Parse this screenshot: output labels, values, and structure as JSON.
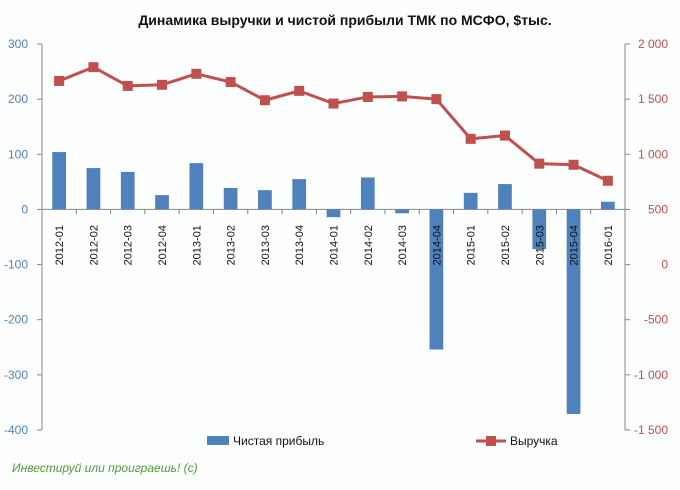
{
  "chart_data": {
    "type": "bar",
    "title": "Динамика выручки и чистой прибыли ТМК по МСФО, $тыс.",
    "categories": [
      "2012-01",
      "2012-02",
      "2012-03",
      "2012-04",
      "2013-01",
      "2013-02",
      "2013-03",
      "2013-04",
      "2014-01",
      "2014-02",
      "2014-03",
      "2014-04",
      "2015-01",
      "2015-02",
      "2015-03",
      "2015-04",
      "2016-01"
    ],
    "series": [
      {
        "name": "Чистая прибыль",
        "type": "bar",
        "axis": "left",
        "color": "#4f81bd",
        "values": [
          104,
          75,
          68,
          26,
          84,
          39,
          35,
          55,
          -14,
          58,
          -7,
          -254,
          30,
          46,
          -72,
          -371,
          14
        ]
      },
      {
        "name": "Выручка",
        "type": "line",
        "axis": "right",
        "color": "#c0504d",
        "values": [
          1665,
          1790,
          1620,
          1630,
          1730,
          1655,
          1490,
          1575,
          1460,
          1520,
          1525,
          1500,
          1140,
          1170,
          915,
          905,
          760
        ]
      }
    ],
    "y_left": {
      "min": -400,
      "max": 300,
      "ticks": [
        300,
        200,
        100,
        0,
        -100,
        -200,
        -300,
        -400
      ],
      "tick_labels": [
        "300",
        "200",
        "100",
        "0",
        "-100",
        "-200",
        "-300",
        "-400"
      ]
    },
    "y_right": {
      "min": -1500,
      "max": 2000,
      "ticks": [
        2000,
        1500,
        1000,
        500,
        0,
        -500,
        -1000,
        -1500
      ],
      "tick_labels": [
        "2 000",
        "1 500",
        "1 000",
        "500",
        "0",
        "-500",
        "-1 000",
        "-1 500"
      ]
    },
    "grid": false,
    "legend_position": "bottom"
  },
  "footer": "Инвестируй или проиграешь! (с)"
}
